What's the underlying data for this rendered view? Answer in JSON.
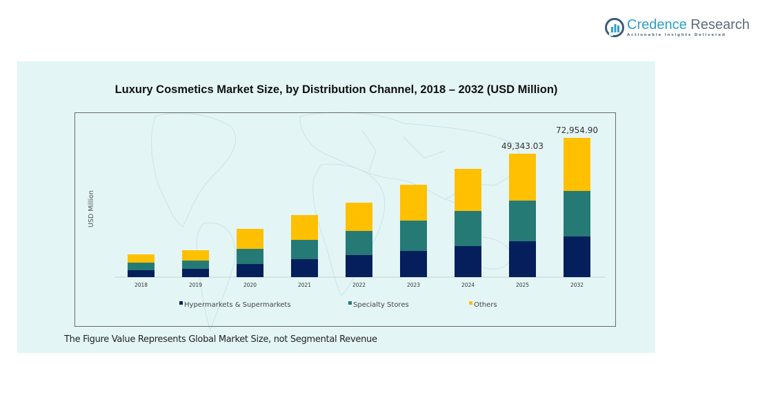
{
  "brand": {
    "name_part1": "Credence",
    "name_part2": " Research",
    "tagline": "Actionable Insights Delivered",
    "icon": "credence-logo-icon"
  },
  "footnote": "The Figure Value Represents Global Market Size, not Segmental Revenue",
  "colors": {
    "panel_bg": "#e4f5f5",
    "hypermarkets": "#041f5c",
    "specialty": "#257a76",
    "others": "#fec000"
  },
  "chart_data": {
    "type": "bar",
    "stacked": true,
    "title": "Luxury Cosmetics  Market Size, by Distribution Channel, 2018 – 2032 (USD Million)",
    "xlabel": "",
    "ylabel": "USD Million",
    "categories": [
      "2018",
      "2019",
      "2020",
      "2021",
      "2022",
      "2023",
      "2024",
      "2025",
      "2032"
    ],
    "series": [
      {
        "name": "Hypermarkets & Supermarkets",
        "color": "#041f5c",
        "values": [
          2757,
          3308,
          5238,
          7168,
          8822,
          10477,
          12407,
          14336,
          21310
        ]
      },
      {
        "name": "Specialty Stores",
        "color": "#257a76",
        "values": [
          3033,
          3308,
          6065,
          7720,
          9650,
          12131,
          14061,
          16266,
          23836
        ]
      },
      {
        "name": "Others",
        "color": "#fec000",
        "values": [
          3308,
          4136,
          7995,
          9925,
          11304,
          14336,
          16818,
          18741,
          27809
        ]
      }
    ],
    "totals_labeled": {
      "2025": "49,343.03",
      "2032": "72,954.90"
    },
    "y_axis_visible": false,
    "grid": false,
    "legend": {
      "position": "bottom",
      "entries": [
        "Hypermarkets & Supermarkets",
        "Specialty Stores",
        "Others"
      ]
    }
  }
}
